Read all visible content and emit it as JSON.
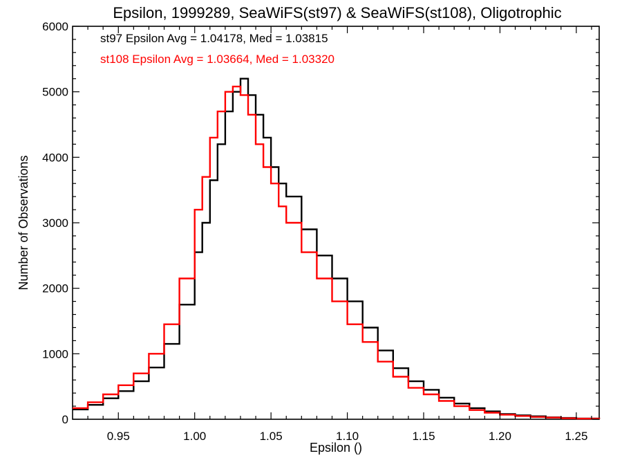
{
  "chart_data": {
    "type": "line",
    "title": "Epsilon, 1999289, SeaWiFS(st97) & SeaWiFS(st108), Oligotrophic",
    "xlabel": "Epsilon ()",
    "ylabel": "Number of Observations",
    "xlim": [
      0.92,
      1.265
    ],
    "ylim": [
      0,
      6000
    ],
    "x_ticks": [
      0.95,
      1.0,
      1.05,
      1.1,
      1.15,
      1.2,
      1.25
    ],
    "x_tick_labels": [
      "0.95",
      "1.00",
      "1.05",
      "1.10",
      "1.15",
      "1.20",
      "1.25"
    ],
    "y_ticks": [
      0,
      1000,
      2000,
      3000,
      4000,
      5000,
      6000
    ],
    "y_tick_labels": [
      "0",
      "1000",
      "2000",
      "3000",
      "4000",
      "5000",
      "6000"
    ],
    "grid": false,
    "line_shape": "step",
    "annotations": [
      {
        "text": "st97 Epsilon Avg = 1.04178, Med = 1.03815",
        "color": "#000000"
      },
      {
        "text": "st108 Epsilon Avg = 1.03664, Med = 1.03320",
        "color": "#ff0000"
      }
    ],
    "x": [
      0.92,
      0.93,
      0.94,
      0.95,
      0.96,
      0.97,
      0.98,
      0.99,
      1.0,
      1.005,
      1.01,
      1.015,
      1.02,
      1.025,
      1.03,
      1.035,
      1.04,
      1.045,
      1.05,
      1.055,
      1.06,
      1.07,
      1.08,
      1.09,
      1.1,
      1.11,
      1.12,
      1.13,
      1.14,
      1.15,
      1.16,
      1.17,
      1.18,
      1.19,
      1.2,
      1.21,
      1.22,
      1.23,
      1.24,
      1.25,
      1.265
    ],
    "series": [
      {
        "color": "#000000",
        "values": [
          150,
          220,
          320,
          430,
          580,
          790,
          1150,
          1750,
          2550,
          3000,
          3650,
          4200,
          4700,
          5000,
          5200,
          4950,
          4650,
          4300,
          3850,
          3600,
          3400,
          2900,
          2500,
          2150,
          1800,
          1400,
          1050,
          780,
          580,
          450,
          330,
          240,
          170,
          120,
          80,
          60,
          45,
          30,
          20,
          12,
          5
        ]
      },
      {
        "color": "#ff0000",
        "values": [
          170,
          260,
          380,
          520,
          700,
          1000,
          1450,
          2150,
          3200,
          3700,
          4300,
          4700,
          5000,
          5080,
          4950,
          4650,
          4200,
          3850,
          3600,
          3250,
          3000,
          2550,
          2150,
          1800,
          1450,
          1180,
          880,
          650,
          480,
          380,
          280,
          200,
          140,
          100,
          70,
          50,
          35,
          25,
          15,
          10,
          5
        ]
      }
    ]
  }
}
